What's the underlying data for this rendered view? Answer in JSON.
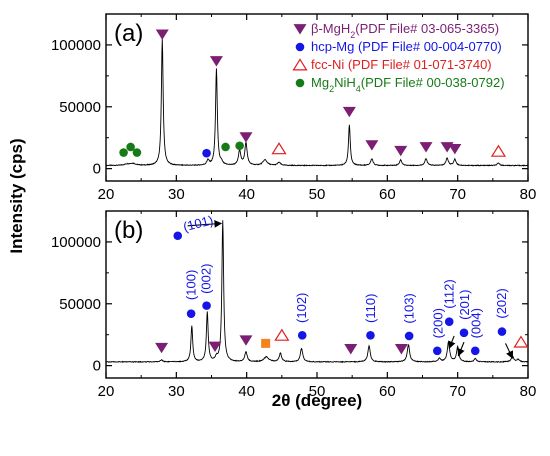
{
  "chart_data": {
    "type": "line",
    "xlabel": "2θ (degree)",
    "ylabel": "Intensity (cps)",
    "xlim": [
      20,
      80
    ],
    "x_ticks": [
      20,
      30,
      40,
      50,
      60,
      70,
      80
    ],
    "x_tick_labels": [
      "20",
      "30",
      "40",
      "50",
      "60",
      "70",
      "80"
    ],
    "grid": false,
    "colors": {
      "trace": "#000000",
      "mgh2": "#7b1f73",
      "mg": "#1515e6",
      "ni": "#e01e1e",
      "mg2nih4": "#167a16",
      "square": "#f58220"
    },
    "panels": [
      {
        "label": "(a)",
        "ylim": [
          -10000,
          125000
        ],
        "y_ticks": [
          0,
          50000,
          100000
        ],
        "y_tick_labels": [
          "0",
          "50000",
          "100000"
        ],
        "baseline": 2500,
        "peaks": [
          {
            "x": 23.0,
            "h": 1000,
            "w": 0.5
          },
          {
            "x": 23.8,
            "h": 1500,
            "w": 0.5
          },
          {
            "x": 28.0,
            "h": 102000,
            "w": 0.15
          },
          {
            "x": 34.5,
            "h": 4000,
            "w": 0.2
          },
          {
            "x": 35.7,
            "h": 78000,
            "w": 0.15
          },
          {
            "x": 36.4,
            "h": 2000,
            "w": 0.2
          },
          {
            "x": 39.0,
            "h": 12000,
            "w": 0.2
          },
          {
            "x": 39.9,
            "h": 18000,
            "w": 0.2
          },
          {
            "x": 42.6,
            "h": 4500,
            "w": 0.35
          },
          {
            "x": 44.6,
            "h": 2500,
            "w": 0.25
          },
          {
            "x": 54.6,
            "h": 33000,
            "w": 0.15
          },
          {
            "x": 57.8,
            "h": 5500,
            "w": 0.2
          },
          {
            "x": 61.9,
            "h": 4500,
            "w": 0.2
          },
          {
            "x": 65.5,
            "h": 5500,
            "w": 0.2
          },
          {
            "x": 68.5,
            "h": 6000,
            "w": 0.2
          },
          {
            "x": 69.6,
            "h": 5000,
            "w": 0.2
          },
          {
            "x": 75.8,
            "h": 2000,
            "w": 0.2
          }
        ],
        "markers": [
          {
            "phase": "mgh2",
            "x": 28.0,
            "y": 108500
          },
          {
            "phase": "mgh2",
            "x": 35.7,
            "y": 87000
          },
          {
            "phase": "mgh2",
            "x": 39.9,
            "y": 25500
          },
          {
            "phase": "mgh2",
            "x": 54.6,
            "y": 46000
          },
          {
            "phase": "mgh2",
            "x": 57.8,
            "y": 19000
          },
          {
            "phase": "mgh2",
            "x": 61.9,
            "y": 14500
          },
          {
            "phase": "mgh2",
            "x": 65.5,
            "y": 17500
          },
          {
            "phase": "mgh2",
            "x": 68.5,
            "y": 17500
          },
          {
            "phase": "mgh2",
            "x": 69.6,
            "y": 16000
          },
          {
            "phase": "mg",
            "x": 34.3,
            "y": 12500
          },
          {
            "phase": "ni",
            "x": 44.6,
            "y": 16000
          },
          {
            "phase": "ni",
            "x": 75.8,
            "y": 14000
          },
          {
            "phase": "mg2nih4",
            "x": 22.5,
            "y": 13000
          },
          {
            "phase": "mg2nih4",
            "x": 23.5,
            "y": 17500
          },
          {
            "phase": "mg2nih4",
            "x": 24.4,
            "y": 13000
          },
          {
            "phase": "mg2nih4",
            "x": 37.0,
            "y": 17500
          },
          {
            "phase": "mg2nih4",
            "x": 39.0,
            "y": 18500
          }
        ],
        "legend": [
          {
            "phase": "mgh2",
            "prefix": "β-MgH",
            "sub": "2",
            "suffix": "(PDF File# 03-065-3365)"
          },
          {
            "phase": "mg",
            "prefix": "hcp-Mg ",
            "sub": "",
            "suffix": "(PDF File# 00-004-0770)"
          },
          {
            "phase": "ni",
            "prefix": "fcc-Ni   ",
            "sub": "",
            "suffix": "(PDF File# 01-071-3740)"
          },
          {
            "phase": "mg2nih4",
            "prefix": "Mg",
            "sub": "2",
            "mid": "NiH",
            "sub2": "4",
            "suffix": "(PDF File# 00-038-0792)"
          }
        ]
      },
      {
        "label": "(b)",
        "ylim": [
          -10000,
          125000
        ],
        "y_ticks": [
          0,
          50000,
          100000
        ],
        "y_tick_labels": [
          "0",
          "50000",
          "100000"
        ],
        "baseline": 3000,
        "peaks": [
          {
            "x": 27.9,
            "h": 1500,
            "w": 0.2
          },
          {
            "x": 32.2,
            "h": 29000,
            "w": 0.15
          },
          {
            "x": 34.4,
            "h": 40000,
            "w": 0.15
          },
          {
            "x": 35.7,
            "h": 3000,
            "w": 0.2
          },
          {
            "x": 36.6,
            "h": 114000,
            "w": 0.15
          },
          {
            "x": 39.9,
            "h": 8000,
            "w": 0.2
          },
          {
            "x": 42.8,
            "h": 4000,
            "w": 0.4
          },
          {
            "x": 44.8,
            "h": 7000,
            "w": 0.2
          },
          {
            "x": 47.8,
            "h": 11000,
            "w": 0.2
          },
          {
            "x": 57.4,
            "h": 13000,
            "w": 0.2
          },
          {
            "x": 63.0,
            "h": 14000,
            "w": 0.2
          },
          {
            "x": 67.4,
            "h": 3000,
            "w": 0.2
          },
          {
            "x": 68.7,
            "h": 16000,
            "w": 0.2
          },
          {
            "x": 70.0,
            "h": 12000,
            "w": 0.2
          },
          {
            "x": 72.5,
            "h": 2500,
            "w": 0.2
          },
          {
            "x": 77.8,
            "h": 4500,
            "w": 0.2
          },
          {
            "x": 78.6,
            "h": 2000,
            "w": 0.2
          }
        ],
        "markers": [
          {
            "phase": "mgh2",
            "x": 27.9,
            "y": 14500
          },
          {
            "phase": "mgh2",
            "x": 35.5,
            "y": 15500
          },
          {
            "phase": "mgh2",
            "x": 39.9,
            "y": 20500
          },
          {
            "phase": "mgh2",
            "x": 54.8,
            "y": 13500
          },
          {
            "phase": "mgh2",
            "x": 62.0,
            "y": 13500
          },
          {
            "phase": "mg",
            "x": 30.2,
            "y": 105000
          },
          {
            "phase": "mg",
            "x": 32.1,
            "y": 42000
          },
          {
            "phase": "mg",
            "x": 34.3,
            "y": 48500
          },
          {
            "phase": "mg",
            "x": 47.9,
            "y": 24500
          },
          {
            "phase": "mg",
            "x": 57.6,
            "y": 24500
          },
          {
            "phase": "mg",
            "x": 63.1,
            "y": 24000
          },
          {
            "phase": "mg",
            "x": 67.1,
            "y": 12000
          },
          {
            "phase": "mg",
            "x": 68.8,
            "y": 35500
          },
          {
            "phase": "mg",
            "x": 70.9,
            "y": 26500
          },
          {
            "phase": "mg",
            "x": 72.5,
            "y": 12000
          },
          {
            "phase": "mg",
            "x": 76.3,
            "y": 27500
          },
          {
            "phase": "ni",
            "x": 45.0,
            "y": 24500
          },
          {
            "phase": "ni",
            "x": 79.0,
            "y": 19000
          },
          {
            "phase": "square",
            "x": 42.7,
            "y": 18000
          }
        ],
        "annotations": [
          {
            "text": "(101)",
            "x": 31.0,
            "y": 112000,
            "rotate": -14
          },
          {
            "text": "(100)",
            "x": 32.1,
            "y": 53000,
            "rotate": -90
          },
          {
            "text": "(002)",
            "x": 34.2,
            "y": 58000,
            "rotate": -90
          },
          {
            "text": "(102)",
            "x": 47.8,
            "y": 34500,
            "rotate": -90
          },
          {
            "text": "(110)",
            "x": 57.6,
            "y": 34500,
            "rotate": -90
          },
          {
            "text": "(103)",
            "x": 63.1,
            "y": 34000,
            "rotate": -90
          },
          {
            "text": "(200)",
            "x": 67.2,
            "y": 22000,
            "rotate": -90
          },
          {
            "text": "(112)",
            "x": 68.8,
            "y": 46000,
            "rotate": -90
          },
          {
            "text": "(201)",
            "x": 71.0,
            "y": 37000,
            "rotate": -90
          },
          {
            "text": "(004)",
            "x": 72.6,
            "y": 22000,
            "rotate": -90
          },
          {
            "text": "(202)",
            "x": 76.2,
            "y": 38000,
            "rotate": -90
          }
        ],
        "arrows": [
          {
            "from": [
              31.6,
              113000
            ],
            "to": [
              36.4,
              115000
            ]
          },
          {
            "from": [
              69.5,
              24000
            ],
            "to": [
              68.8,
              14000
            ]
          },
          {
            "from": [
              70.9,
              19000
            ],
            "to": [
              70.1,
              8000
            ]
          },
          {
            "from": [
              76.8,
              18000
            ],
            "to": [
              77.8,
              6000
            ]
          }
        ]
      }
    ]
  }
}
